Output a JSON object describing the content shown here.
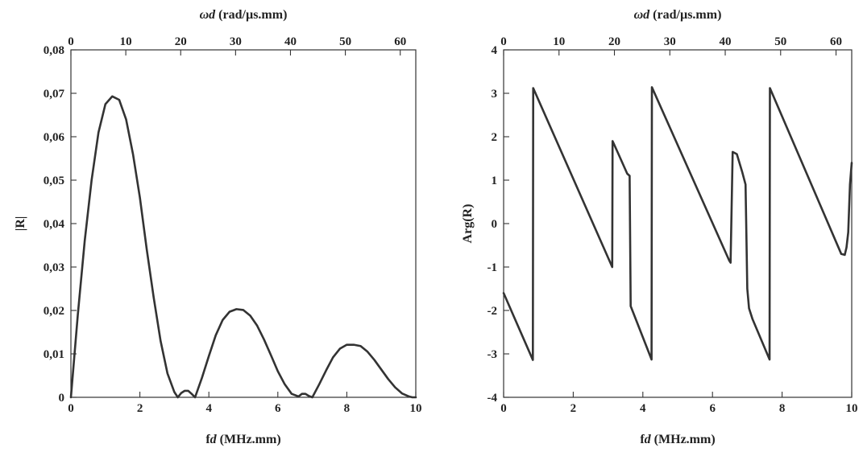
{
  "chart_data": [
    {
      "type": "line",
      "xlabel": "fd (MHz.mm)",
      "ylabel": "|R|",
      "top_xlabel": "ωd (rad/µs.mm)",
      "xlim": [
        0,
        10
      ],
      "ylim": [
        0,
        0.08
      ],
      "top_xlim": [
        0,
        62.832
      ],
      "xticks": [
        0,
        2,
        4,
        6,
        8,
        10
      ],
      "xtick_labels": [
        "0",
        "2",
        "4",
        "6",
        "8",
        "10"
      ],
      "yticks": [
        0,
        0.01,
        0.02,
        0.03,
        0.04,
        0.05,
        0.06,
        0.07,
        0.08
      ],
      "ytick_labels": [
        "0",
        "0,01",
        "0,02",
        "0,03",
        "0,04",
        "0,05",
        "0,06",
        "0,07",
        "0,08"
      ],
      "top_xticks": [
        0,
        10,
        20,
        30,
        40,
        50,
        60
      ],
      "top_xtick_labels": [
        "0",
        "10",
        "20",
        "30",
        "40",
        "50",
        "60"
      ],
      "grid": false,
      "series": [
        {
          "x": [
            0,
            0.2,
            0.4,
            0.6,
            0.8,
            1.0,
            1.2,
            1.4,
            1.6,
            1.8,
            2.0,
            2.2,
            2.4,
            2.6,
            2.8,
            3.0,
            3.1,
            3.2,
            3.3,
            3.4,
            3.5,
            3.6,
            3.8,
            4.0,
            4.2,
            4.4,
            4.6,
            4.8,
            5.0,
            5.2,
            5.4,
            5.6,
            5.8,
            6.0,
            6.2,
            6.4,
            6.6,
            6.7,
            6.8,
            6.9,
            7.0,
            7.2,
            7.4,
            7.6,
            7.8,
            8.0,
            8.2,
            8.4,
            8.6,
            8.8,
            9.0,
            9.2,
            9.4,
            9.6,
            9.8,
            9.9,
            10.0
          ],
          "values": [
            0,
            0.019,
            0.036,
            0.05,
            0.061,
            0.0675,
            0.0693,
            0.0685,
            0.064,
            0.056,
            0.046,
            0.034,
            0.023,
            0.013,
            0.0055,
            0.0012,
            0,
            0.001,
            0.0015,
            0.0015,
            0.0008,
            0,
            0.0045,
            0.0095,
            0.0143,
            0.0178,
            0.0197,
            0.0203,
            0.0201,
            0.0188,
            0.0165,
            0.0133,
            0.0097,
            0.006,
            0.003,
            0.0008,
            0.0002,
            0.0008,
            0.0008,
            0.0003,
            0,
            0.003,
            0.0062,
            0.0092,
            0.0112,
            0.0121,
            0.0121,
            0.0118,
            0.0105,
            0.0086,
            0.0064,
            0.0042,
            0.0023,
            0.0009,
            0.0002,
            0,
            0
          ]
        }
      ]
    },
    {
      "type": "line",
      "xlabel": "fd (MHz.mm)",
      "ylabel": "Arg(R)",
      "top_xlabel": "ωd (rad/µs.mm)",
      "xlim": [
        0,
        10
      ],
      "ylim": [
        -4,
        4
      ],
      "top_xlim": [
        0,
        62.832
      ],
      "xticks": [
        0,
        2,
        4,
        6,
        8,
        10
      ],
      "xtick_labels": [
        "0",
        "2",
        "4",
        "6",
        "8",
        "10"
      ],
      "yticks": [
        -4,
        -3,
        -2,
        -1,
        0,
        1,
        2,
        3,
        4
      ],
      "ytick_labels": [
        "-4",
        "-3",
        "-2",
        "-1",
        "0",
        "1",
        "2",
        "3",
        "4"
      ],
      "top_xticks": [
        0,
        10,
        20,
        30,
        40,
        50,
        60
      ],
      "top_xtick_labels": [
        "0",
        "10",
        "20",
        "30",
        "40",
        "50",
        "60"
      ],
      "grid": false,
      "series": [
        {
          "x": [
            0,
            0.84,
            0.85,
            3.12,
            3.13,
            3.3,
            3.55,
            3.62,
            3.65,
            4.25,
            4.26,
            6.48,
            6.52,
            6.58,
            6.7,
            6.85,
            6.95,
            7.0,
            7.05,
            7.15,
            7.64,
            7.65,
            9.7,
            9.8,
            9.85,
            9.9,
            9.95,
            10.0
          ],
          "values": [
            -1.6,
            -3.14,
            3.12,
            -1.0,
            1.9,
            1.6,
            1.15,
            1.1,
            -1.9,
            -3.13,
            3.14,
            -0.85,
            -0.9,
            1.65,
            1.6,
            1.2,
            0.9,
            -1.5,
            -1.95,
            -2.2,
            -3.13,
            3.12,
            -0.7,
            -0.72,
            -0.55,
            -0.2,
            0.9,
            1.4
          ]
        }
      ]
    }
  ]
}
